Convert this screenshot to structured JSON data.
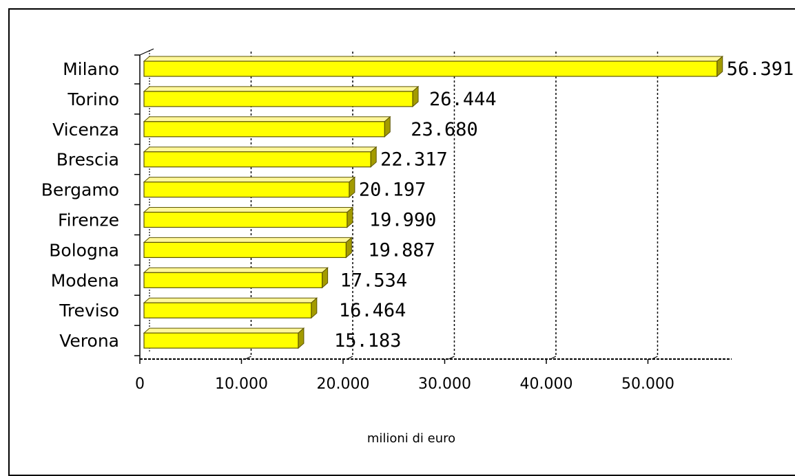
{
  "chart_data": {
    "type": "bar",
    "orientation": "horizontal",
    "categories": [
      "Milano",
      "Torino",
      "Vicenza",
      "Brescia",
      "Bergamo",
      "Firenze",
      "Bologna",
      "Modena",
      "Treviso",
      "Verona"
    ],
    "values": [
      56391,
      26444,
      23680,
      22317,
      20197,
      19990,
      19887,
      17534,
      16464,
      15183
    ],
    "value_labels": [
      "56.391",
      "26.444",
      "23.680",
      "22.317",
      "20.197",
      "19.990",
      "19.887",
      "17.534",
      "16.464",
      "15.183"
    ],
    "x_ticks": [
      0,
      10000,
      20000,
      30000,
      40000,
      50000
    ],
    "x_tick_labels": [
      "0",
      "10.000",
      "20.000",
      "30.000",
      "40.000",
      "50.000"
    ],
    "xlabel": "milioni di euro",
    "xlim": [
      0,
      58000
    ],
    "grid": "vertical dashed",
    "bar_style": "3d",
    "colors": {
      "bar_front": "#ffff00",
      "bar_top": "#fff79a",
      "bar_side": "#a39b00",
      "bar_outline": "#5c5500",
      "grid": "#000000"
    }
  }
}
